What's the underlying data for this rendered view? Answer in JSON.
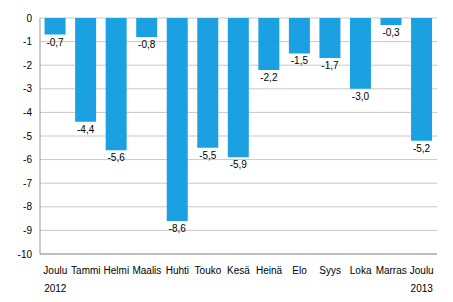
{
  "chart_data": {
    "type": "bar",
    "categories": [
      "Joulu",
      "Tammi",
      "Helmi",
      "Maalis",
      "Huhti",
      "Touko",
      "Kesä",
      "Heinä",
      "Elo",
      "Syys",
      "Loka",
      "Marras",
      "Joulu"
    ],
    "years": [
      "2012",
      null,
      null,
      null,
      null,
      null,
      null,
      null,
      null,
      null,
      null,
      null,
      "2013"
    ],
    "values": [
      -0.7,
      -4.4,
      -5.6,
      -0.8,
      -8.6,
      -5.5,
      -5.9,
      -2.2,
      -1.5,
      -1.7,
      -3.0,
      -0.3,
      -5.2
    ],
    "value_labels": [
      "-0,7",
      "-4,4",
      "-5,6",
      "-0,8",
      "-8,6",
      "-5,5",
      "-5,9",
      "-2,2",
      "-1,5",
      "-1,7",
      "-3,0",
      "-0,3",
      "-5,2"
    ],
    "color": "#1ba1e2",
    "ylim": [
      -10,
      0
    ],
    "yticks": [
      0,
      -1,
      -2,
      -3,
      -4,
      -5,
      -6,
      -7,
      -8,
      -9,
      -10
    ],
    "grid": true,
    "data_labels": true
  }
}
